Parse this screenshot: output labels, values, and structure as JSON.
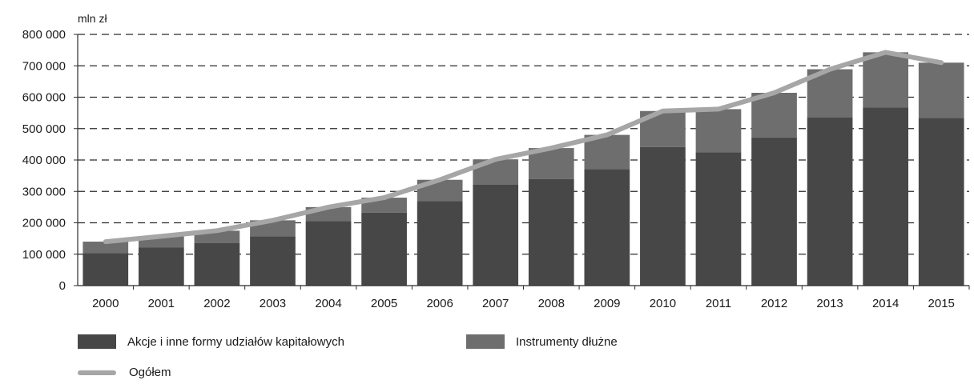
{
  "chart_data": {
    "type": "bar",
    "stacked": true,
    "unit_label": "mln zł",
    "categories": [
      "2000",
      "2001",
      "2002",
      "2003",
      "2004",
      "2005",
      "2006",
      "2007",
      "2008",
      "2009",
      "2010",
      "2011",
      "2012",
      "2013",
      "2014",
      "2015"
    ],
    "series": [
      {
        "name": "Akcje i inne formy udziałów kapitałowych",
        "color": "#474747",
        "values": [
          104000,
          121000,
          136000,
          157000,
          205000,
          232000,
          269000,
          322000,
          339000,
          371000,
          441000,
          425000,
          472000,
          535000,
          567000,
          534000
        ]
      },
      {
        "name": "Instrumenty dłużne",
        "color": "#6e6e6e",
        "values": [
          36000,
          36000,
          39000,
          51000,
          45000,
          48000,
          68000,
          80000,
          99000,
          109000,
          115000,
          137000,
          142000,
          154000,
          176000,
          176000
        ]
      }
    ],
    "line_series": {
      "name": "Ogółem",
      "color": "#a6a6a6",
      "values": [
        140000,
        157000,
        175000,
        208000,
        250000,
        280000,
        337000,
        402000,
        438000,
        480000,
        556000,
        562000,
        614000,
        689000,
        743000,
        710000
      ]
    },
    "ylim": [
      0,
      800000
    ],
    "yticks": [
      0,
      100000,
      200000,
      300000,
      400000,
      500000,
      600000,
      700000,
      800000
    ],
    "ytick_labels": [
      "0",
      "100 000",
      "200 000",
      "300 000",
      "400 000",
      "500 000",
      "600 000",
      "700 000",
      "800 000"
    ],
    "grid": "dashed horizontal",
    "legend_placement": "bottom"
  }
}
